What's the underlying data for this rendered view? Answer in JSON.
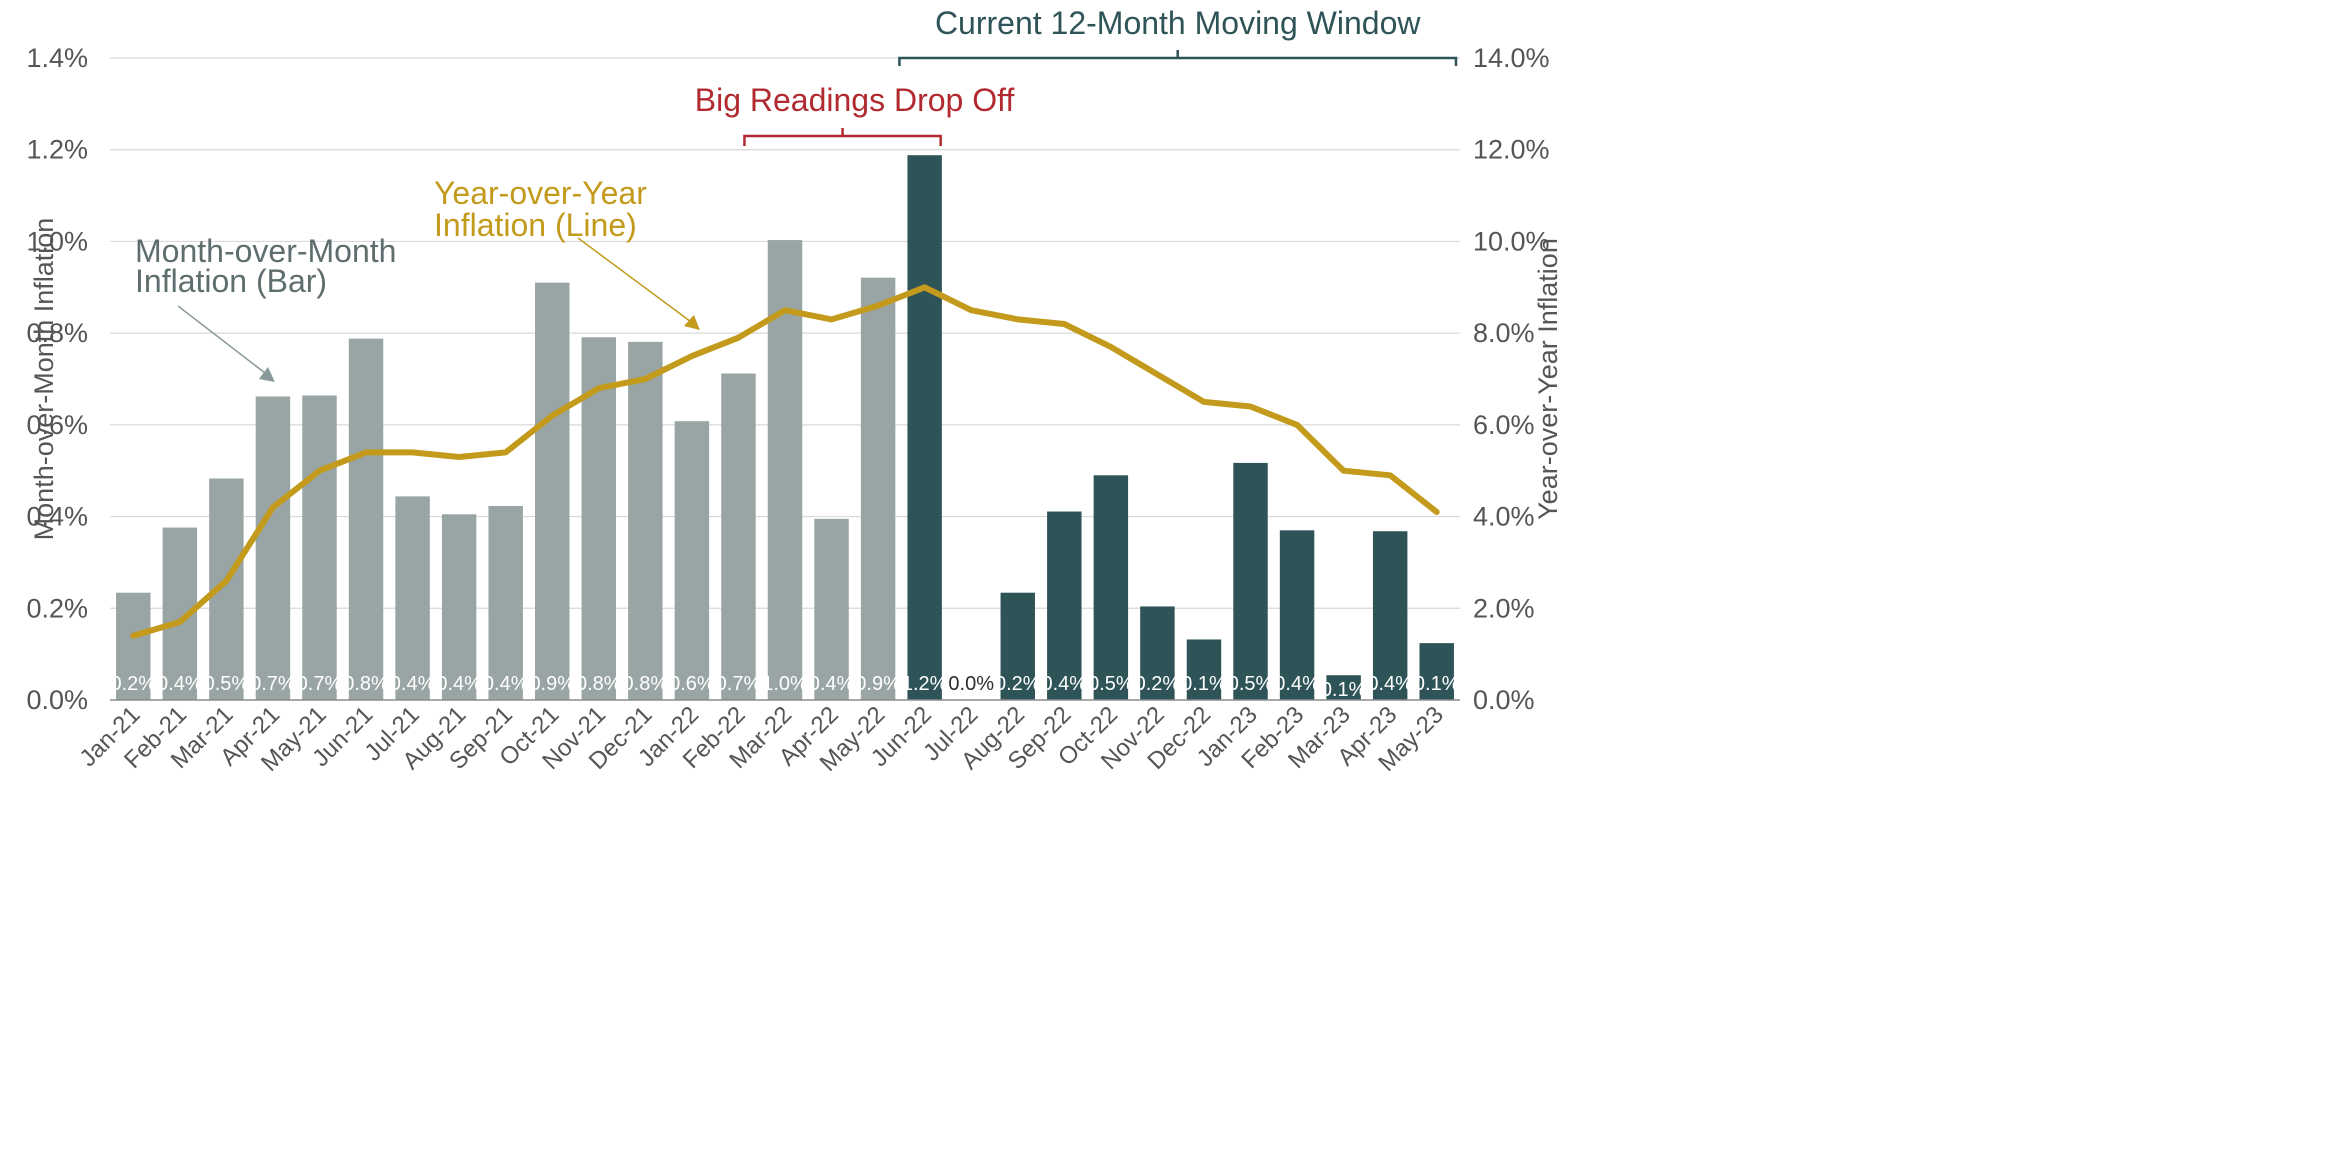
{
  "chart_data": {
    "type": "bar",
    "categories": [
      "Jan-21",
      "Feb-21",
      "Mar-21",
      "Apr-21",
      "May-21",
      "Jun-21",
      "Jul-21",
      "Aug-21",
      "Sep-21",
      "Oct-21",
      "Nov-21",
      "Dec-21",
      "Jan-22",
      "Feb-22",
      "Mar-22",
      "Apr-22",
      "May-22",
      "Jun-22",
      "Jul-22",
      "Aug-22",
      "Sep-22",
      "Oct-22",
      "Nov-22",
      "Dec-22",
      "Jan-23",
      "Feb-23",
      "Mar-23",
      "Apr-23",
      "May-23"
    ],
    "series": [
      {
        "type": "bar",
        "axis": "left",
        "values": [
          0.234,
          0.376,
          0.483,
          0.662,
          0.664,
          0.788,
          0.444,
          0.405,
          0.423,
          0.91,
          0.791,
          0.781,
          0.608,
          0.712,
          1.003,
          0.395,
          0.921,
          1.188,
          0.0,
          0.234,
          0.411,
          0.49,
          0.204,
          0.132,
          0.517,
          0.37,
          0.054,
          0.368,
          0.124
        ],
        "data_labels": [
          "0.2%",
          "0.4%",
          "0.5%",
          "0.7%",
          "0.7%",
          "0.8%",
          "0.4%",
          "0.4%",
          "0.4%",
          "0.9%",
          "0.8%",
          "0.8%",
          "0.6%",
          "0.7%",
          "1.0%",
          "0.4%",
          "0.9%",
          "1.2%",
          "0.0%",
          "0.2%",
          "0.4%",
          "0.5%",
          "0.2%",
          "0.1%",
          "0.5%",
          "0.4%",
          "0.1%",
          "0.4%",
          "0.1%"
        ],
        "colors": {
          "past": "#99a5a4",
          "window": "#2f5458"
        },
        "window_start_index": 17
      },
      {
        "type": "line",
        "axis": "right",
        "values": [
          1.4,
          1.7,
          2.6,
          4.2,
          5.0,
          5.4,
          5.4,
          5.3,
          5.4,
          6.2,
          6.8,
          7.0,
          7.5,
          7.9,
          8.5,
          8.3,
          8.6,
          9.0,
          8.5,
          8.3,
          8.2,
          7.7,
          7.1,
          6.5,
          6.4,
          6.0,
          5.0,
          4.9,
          4.1
        ],
        "color": "#c39a1b"
      }
    ],
    "y_left": {
      "label": "Month-over-Month Inflation",
      "lim": [
        0,
        1.4
      ],
      "ticks": [
        "0.0%",
        "0.2%",
        "0.4%",
        "0.6%",
        "0.8%",
        "1.0%",
        "1.2%",
        "1.4%"
      ]
    },
    "y_right": {
      "label": "Year-over-Year Inflation",
      "lim": [
        0,
        14
      ],
      "ticks": [
        "0.0%",
        "2.0%",
        "4.0%",
        "6.0%",
        "8.0%",
        "10.0%",
        "12.0%",
        "14.0%"
      ]
    },
    "grid": true,
    "annotations": {
      "moving_window": {
        "text": "Current 12-Month Moving Window",
        "color": "#2f5458",
        "from": "Jun-22",
        "to": "May-23"
      },
      "drop_off": {
        "text": "Big Readings Drop Off",
        "color": "#b02a30",
        "from": "Feb-22",
        "to": "Jun-22"
      },
      "yoy_label": {
        "lines": [
          "Year-over-Year",
          "Inflation (Line)"
        ],
        "color": "#c39a1b",
        "points_to": "Jan-22"
      },
      "mom_label": {
        "lines": [
          "Month-over-Month",
          "Inflation (Bar)"
        ],
        "color": "#5e6e6e",
        "points_to": "Apr-21"
      }
    }
  }
}
